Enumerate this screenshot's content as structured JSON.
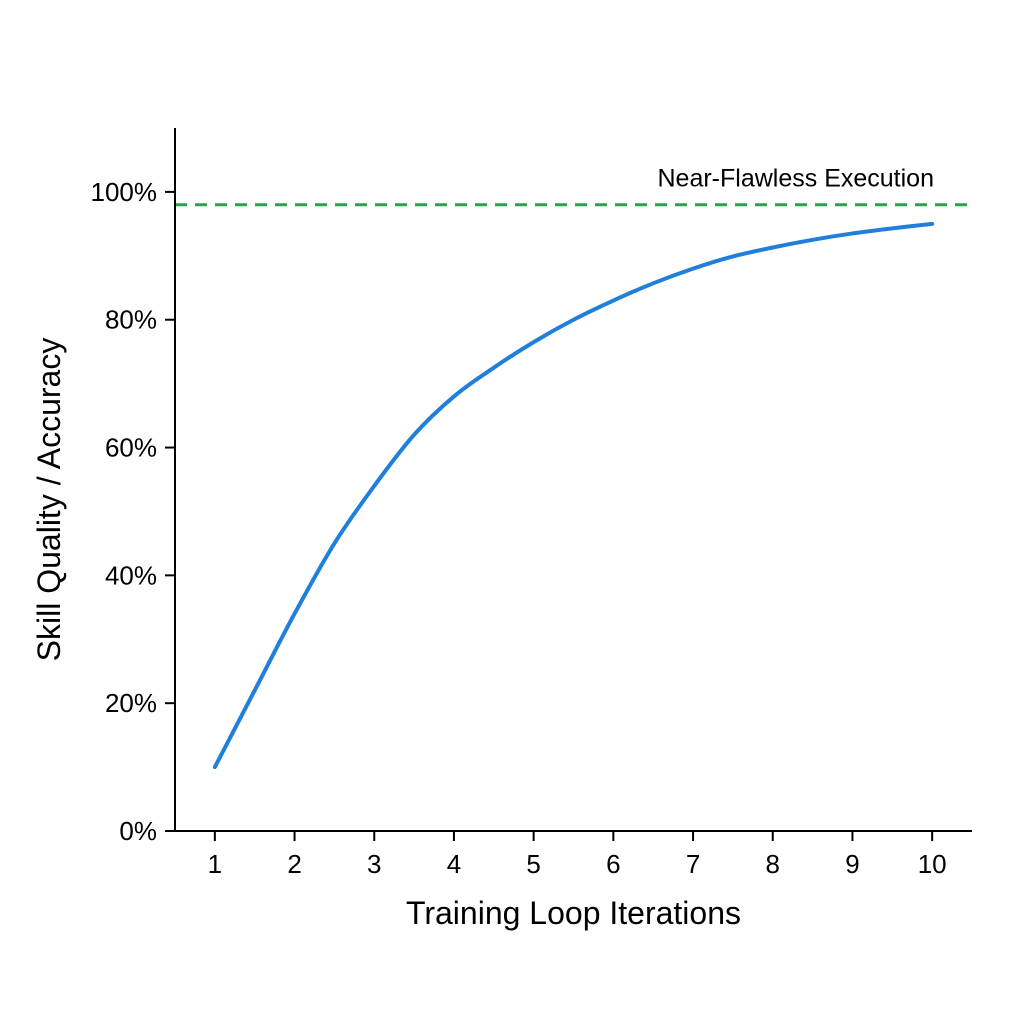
{
  "chart_data": {
    "type": "line",
    "title": "",
    "xlabel": "Training Loop Iterations",
    "ylabel": "Skill Quality / Accuracy",
    "x_ticks": [
      "1",
      "2",
      "3",
      "4",
      "5",
      "6",
      "7",
      "8",
      "9",
      "10"
    ],
    "y_ticks": [
      "0%",
      "20%",
      "40%",
      "60%",
      "80%",
      "100%"
    ],
    "xlim": [
      0.5,
      10.5
    ],
    "ylim": [
      0,
      110
    ],
    "grid": false,
    "series": [
      {
        "x": [
          1,
          1.5,
          2,
          2.5,
          3,
          3.5,
          4,
          4.5,
          5,
          5.5,
          6,
          6.5,
          7,
          7.5,
          8,
          8.5,
          9,
          9.5,
          10
        ],
        "values": [
          10,
          22,
          34,
          45,
          54,
          62,
          68,
          72.5,
          76.5,
          80,
          83,
          85.7,
          88,
          89.9,
          91.3,
          92.5,
          93.5,
          94.3,
          95
        ],
        "color": "#1f7fdb"
      }
    ],
    "reference_line": {
      "y": 98,
      "label": "Near-Flawless Execution",
      "color": "#2ca04c",
      "style": "dashed"
    }
  }
}
